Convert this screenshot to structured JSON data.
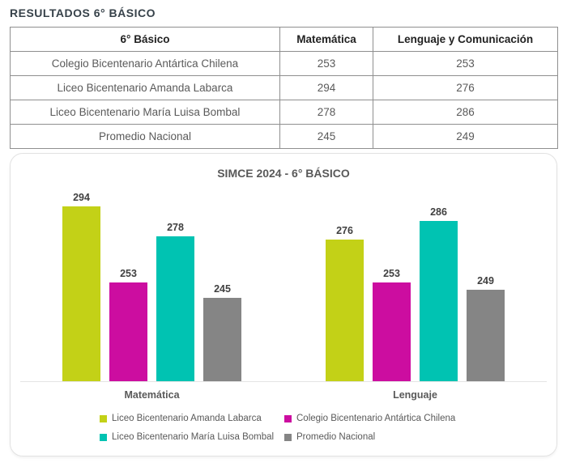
{
  "page": {
    "title": "RESULTADOS 6° BÁSICO"
  },
  "table": {
    "headers": [
      "6° Básico",
      "Matemática",
      "Lenguaje y Comunicación"
    ],
    "rows": [
      {
        "name": "Colegio Bicentenario Antártica Chilena",
        "matematica": "253",
        "lenguaje": "253"
      },
      {
        "name": "Liceo Bicentenario Amanda Labarca",
        "matematica": "294",
        "lenguaje": "276"
      },
      {
        "name": "Liceo Bicentenario María Luisa Bombal",
        "matematica": "278",
        "lenguaje": "286"
      },
      {
        "name": "Promedio Nacional",
        "matematica": "245",
        "lenguaje": "249"
      }
    ]
  },
  "chart_data": {
    "type": "bar",
    "title": "SIMCE 2024 - 6° BÁSICO",
    "categories": [
      "Matemática",
      "Lenguaje"
    ],
    "series": [
      {
        "name": "Liceo Bicentenario Amanda Labarca",
        "color": "#c3d117",
        "values": [
          294,
          276
        ]
      },
      {
        "name": "Colegio Bicentenario Antártica Chilena",
        "color": "#cc0da0",
        "values": [
          253,
          253
        ]
      },
      {
        "name": "Liceo Bicentenario María Luisa Bombal",
        "color": "#00c3b2",
        "values": [
          278,
          286
        ]
      },
      {
        "name": "Promedio Nacional",
        "color": "#858585",
        "values": [
          245,
          249
        ]
      }
    ],
    "value_axis": {
      "min": 200,
      "max": 310
    },
    "grid": false,
    "legend_position": "bottom",
    "colors": {
      "title_text": "#595959",
      "data_label_text": "#404040",
      "axis_line": "#e4e4e4",
      "legend_text": "#595959"
    }
  }
}
